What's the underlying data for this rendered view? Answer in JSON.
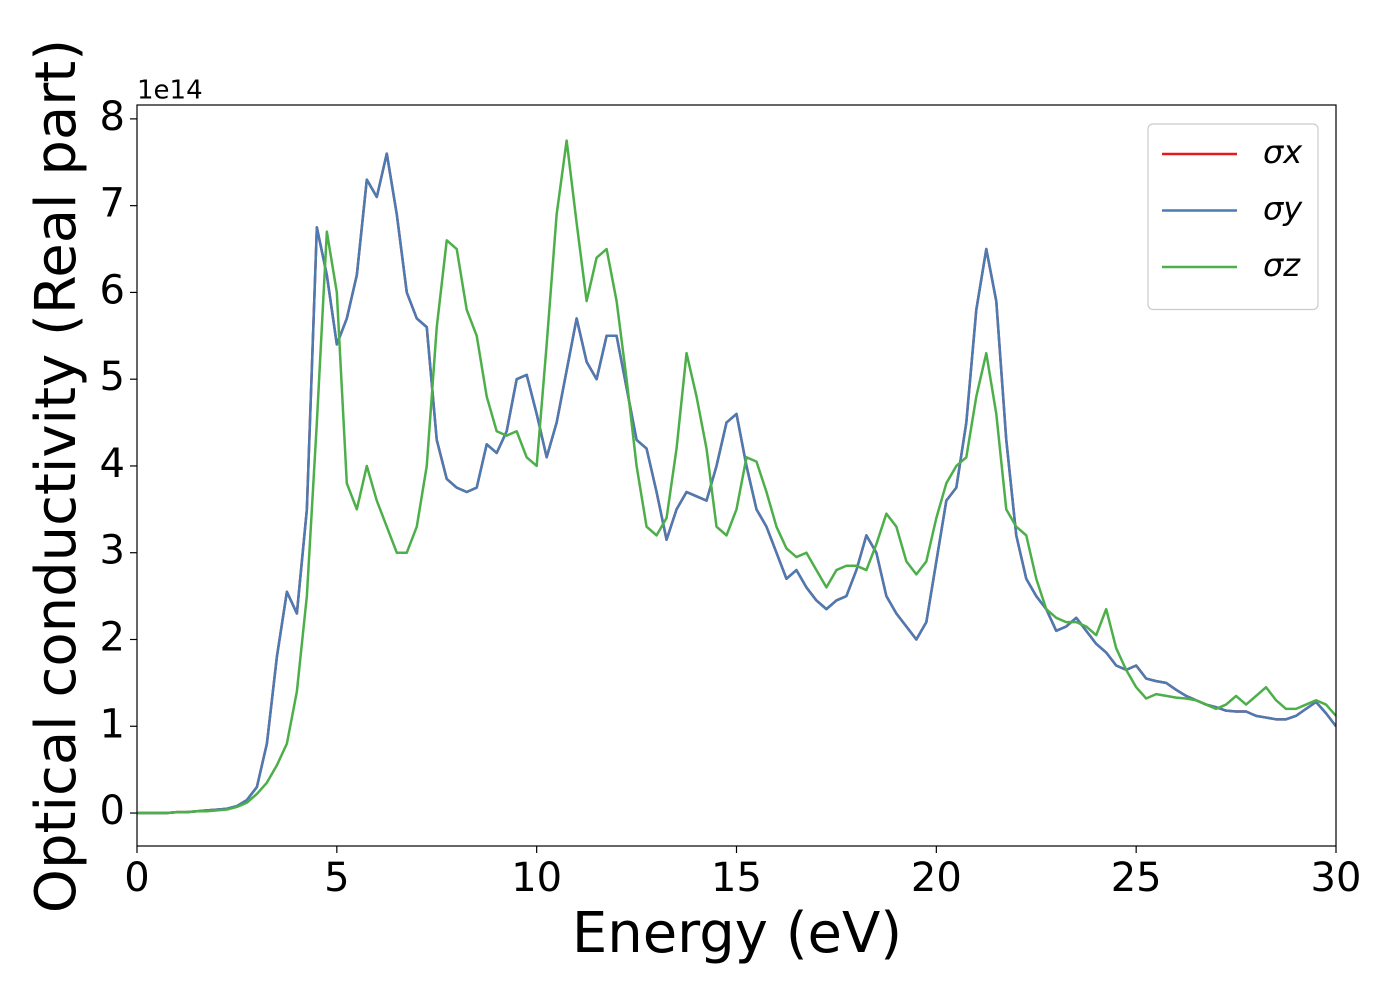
{
  "chart_data": {
    "type": "line",
    "xlabel": "Energy (eV)",
    "ylabel": "Optical conductivity (Real part)",
    "offset_label": "1e14",
    "x": [
      0,
      0.25,
      0.5,
      0.75,
      1,
      1.25,
      1.5,
      1.75,
      2,
      2.25,
      2.5,
      2.75,
      3,
      3.25,
      3.5,
      3.75,
      4,
      4.25,
      4.5,
      4.75,
      5,
      5.25,
      5.5,
      5.75,
      6,
      6.25,
      6.5,
      6.75,
      7,
      7.25,
      7.5,
      7.75,
      8,
      8.25,
      8.5,
      8.75,
      9,
      9.25,
      9.5,
      9.75,
      10,
      10.25,
      10.5,
      10.75,
      11,
      11.25,
      11.5,
      11.75,
      12,
      12.25,
      12.5,
      12.75,
      13,
      13.25,
      13.5,
      13.75,
      14,
      14.25,
      14.5,
      14.75,
      15,
      15.25,
      15.5,
      15.75,
      16,
      16.25,
      16.5,
      16.75,
      17,
      17.25,
      17.5,
      17.75,
      18,
      18.25,
      18.5,
      18.75,
      19,
      19.25,
      19.5,
      19.75,
      20,
      20.25,
      20.5,
      20.75,
      21,
      21.25,
      21.5,
      21.75,
      22,
      22.25,
      22.5,
      22.75,
      23,
      23.25,
      23.5,
      23.75,
      24,
      24.25,
      24.5,
      24.75,
      25,
      25.25,
      25.5,
      25.75,
      26,
      26.25,
      26.5,
      26.75,
      27,
      27.25,
      27.5,
      27.75,
      28,
      28.25,
      28.5,
      28.75,
      29,
      29.25,
      29.5,
      29.75,
      30
    ],
    "series": [
      {
        "name": "σx",
        "color": "#e41a1c",
        "values": [
          0,
          0,
          0,
          0,
          0.01,
          0.01,
          0.02,
          0.03,
          0.04,
          0.05,
          0.08,
          0.15,
          0.3,
          0.8,
          1.8,
          2.55,
          2.3,
          3.5,
          6.75,
          6.2,
          5.4,
          5.7,
          6.2,
          7.3,
          7.1,
          7.6,
          6.9,
          6.0,
          5.7,
          5.6,
          4.3,
          3.85,
          3.75,
          3.7,
          3.75,
          4.25,
          4.15,
          4.4,
          5.0,
          5.05,
          4.6,
          4.1,
          4.5,
          5.1,
          5.7,
          5.2,
          5.0,
          5.5,
          5.5,
          4.9,
          4.3,
          4.2,
          3.7,
          3.15,
          3.5,
          3.7,
          3.65,
          3.6,
          4.0,
          4.5,
          4.6,
          4.0,
          3.5,
          3.3,
          3.0,
          2.7,
          2.8,
          2.6,
          2.45,
          2.35,
          2.45,
          2.5,
          2.8,
          3.2,
          3.0,
          2.5,
          2.3,
          2.15,
          2.0,
          2.2,
          2.9,
          3.6,
          3.75,
          4.5,
          5.8,
          6.5,
          5.9,
          4.3,
          3.2,
          2.7,
          2.5,
          2.35,
          2.1,
          2.15,
          2.25,
          2.1,
          1.95,
          1.85,
          1.7,
          1.65,
          1.7,
          1.55,
          1.52,
          1.5,
          1.42,
          1.35,
          1.3,
          1.25,
          1.22,
          1.18,
          1.17,
          1.17,
          1.12,
          1.1,
          1.08,
          1.08,
          1.12,
          1.2,
          1.28,
          1.15,
          1.0
        ]
      },
      {
        "name": "σy",
        "color": "#4a7bb3",
        "values": [
          0,
          0,
          0,
          0,
          0.01,
          0.01,
          0.02,
          0.03,
          0.04,
          0.05,
          0.08,
          0.15,
          0.3,
          0.8,
          1.8,
          2.55,
          2.3,
          3.5,
          6.75,
          6.2,
          5.4,
          5.7,
          6.2,
          7.3,
          7.1,
          7.6,
          6.9,
          6.0,
          5.7,
          5.6,
          4.3,
          3.85,
          3.75,
          3.7,
          3.75,
          4.25,
          4.15,
          4.4,
          5.0,
          5.05,
          4.6,
          4.1,
          4.5,
          5.1,
          5.7,
          5.2,
          5.0,
          5.5,
          5.5,
          4.9,
          4.3,
          4.2,
          3.7,
          3.15,
          3.5,
          3.7,
          3.65,
          3.6,
          4.0,
          4.5,
          4.6,
          4.0,
          3.5,
          3.3,
          3.0,
          2.7,
          2.8,
          2.6,
          2.45,
          2.35,
          2.45,
          2.5,
          2.8,
          3.2,
          3.0,
          2.5,
          2.3,
          2.15,
          2.0,
          2.2,
          2.9,
          3.6,
          3.75,
          4.5,
          5.8,
          6.5,
          5.9,
          4.3,
          3.2,
          2.7,
          2.5,
          2.35,
          2.1,
          2.15,
          2.25,
          2.1,
          1.95,
          1.85,
          1.7,
          1.65,
          1.7,
          1.55,
          1.52,
          1.5,
          1.42,
          1.35,
          1.3,
          1.25,
          1.22,
          1.18,
          1.17,
          1.17,
          1.12,
          1.1,
          1.08,
          1.08,
          1.12,
          1.2,
          1.28,
          1.15,
          1.0
        ]
      },
      {
        "name": "σz",
        "color": "#4daf4a",
        "values": [
          0,
          0,
          0,
          0,
          0.01,
          0.01,
          0.02,
          0.02,
          0.03,
          0.04,
          0.07,
          0.12,
          0.22,
          0.35,
          0.55,
          0.8,
          1.4,
          2.5,
          4.5,
          6.7,
          6.0,
          3.8,
          3.5,
          4.0,
          3.6,
          3.3,
          3.0,
          3.0,
          3.3,
          4.0,
          5.6,
          6.6,
          6.5,
          5.8,
          5.5,
          4.8,
          4.4,
          4.35,
          4.4,
          4.1,
          4.0,
          5.4,
          6.9,
          7.75,
          6.8,
          5.9,
          6.4,
          6.5,
          5.9,
          5.0,
          4.0,
          3.3,
          3.2,
          3.4,
          4.2,
          5.3,
          4.8,
          4.2,
          3.3,
          3.2,
          3.5,
          4.1,
          4.05,
          3.7,
          3.3,
          3.05,
          2.95,
          3.0,
          2.8,
          2.6,
          2.8,
          2.85,
          2.85,
          2.8,
          3.1,
          3.45,
          3.3,
          2.9,
          2.75,
          2.9,
          3.4,
          3.8,
          4.0,
          4.1,
          4.8,
          5.3,
          4.6,
          3.5,
          3.3,
          3.2,
          2.7,
          2.35,
          2.25,
          2.2,
          2.2,
          2.15,
          2.05,
          2.35,
          1.9,
          1.65,
          1.45,
          1.32,
          1.37,
          1.35,
          1.33,
          1.32,
          1.3,
          1.25,
          1.2,
          1.25,
          1.35,
          1.25,
          1.35,
          1.45,
          1.3,
          1.2,
          1.2,
          1.25,
          1.3,
          1.25,
          1.12
        ]
      }
    ],
    "xlim": [
      0,
      30
    ],
    "xticks": [
      0,
      5,
      10,
      15,
      20,
      25,
      30
    ],
    "ylim": [
      -0.38,
      8.16
    ],
    "yticks": [
      0,
      1,
      2,
      3,
      4,
      5,
      6,
      7,
      8
    ],
    "legend": "upper right"
  }
}
